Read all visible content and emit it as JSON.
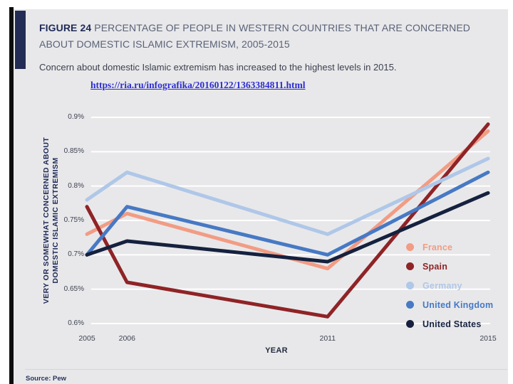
{
  "figure": {
    "label": "FIGURE 24",
    "title_rest": "PERCENTAGE OF PEOPLE IN WESTERN COUNTRIES THAT ARE CONCERNED ABOUT DOMESTIC ISLAMIC EXTREMISM, 2005-2015",
    "subtitle": "Concern about domestic Islamic extremism has increased to the highest levels in 2015.",
    "link_url": "https://ria.ru/infografika/20160122/1363384811.html",
    "source": "Source: Pew"
  },
  "chart_data": {
    "type": "line",
    "title": "FIGURE 24 PERCENTAGE OF PEOPLE IN WESTERN COUNTRIES THAT ARE CONCERNED ABOUT DOMESTIC ISLAMIC EXTREMISM, 2005-2015",
    "x": [
      2005,
      2006,
      2011,
      2015
    ],
    "x_tick_labels": [
      "2005",
      "2006",
      "2011",
      "2015"
    ],
    "xlabel": "YEAR",
    "ylabel": "VERY OR SOMEWHAT CONCERNED ABOUT DOMESTIC ISLAMIC EXTREMISM",
    "ylabel_lines": [
      "VERY OR SOMEWHAT CONCERNED ABOUT",
      "DOMESTIC ISLAMIC EXTREMISM"
    ],
    "xlim": [
      2005,
      2015
    ],
    "ylim": [
      0.6,
      0.9
    ],
    "yticks": [
      0.9,
      0.85,
      0.8,
      0.75,
      0.7,
      0.65,
      0.6
    ],
    "ytick_labels": [
      "0.9%",
      "0.85%",
      "0.8%",
      "0.75%",
      "0.7%",
      "0.65%",
      "0.6%"
    ],
    "grid": "horizontal white lines on gray background",
    "legend_position": "inside-right",
    "series": [
      {
        "name": "France",
        "color": "#F29C84",
        "values": [
          0.73,
          0.76,
          0.68,
          0.88
        ]
      },
      {
        "name": "Spain",
        "color": "#8F2326",
        "values": [
          0.77,
          0.66,
          0.61,
          0.89
        ]
      },
      {
        "name": "Germany",
        "color": "#AFC7E8",
        "values": [
          0.78,
          0.82,
          0.73,
          0.84
        ]
      },
      {
        "name": "United Kingdom",
        "color": "#4779C4",
        "values": [
          0.7,
          0.77,
          0.7,
          0.82
        ]
      },
      {
        "name": "United States",
        "color": "#15213E",
        "values": [
          0.7,
          0.72,
          0.69,
          0.79
        ]
      }
    ]
  },
  "colors": {
    "panel_bg": "#E8E8EA",
    "accent_navy": "#232C54",
    "title_navy": "#1F2A57",
    "title_gray": "#5A6278",
    "subtitle_gray": "#3C4150",
    "link_blue": "#2D2DD0",
    "gridline": "#FFFFFF",
    "tick_text": "#3E4351"
  }
}
